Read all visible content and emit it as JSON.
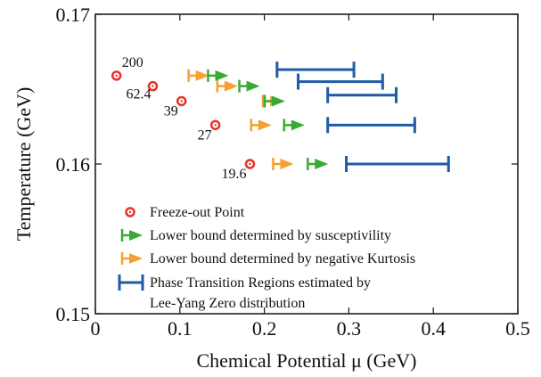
{
  "chart_data": {
    "type": "scatter",
    "xlabel": "Chemical Potential μ (GeV)",
    "ylabel": "Temperature (GeV)",
    "xlim": [
      0,
      0.5
    ],
    "ylim": [
      0.15,
      0.17
    ],
    "xticks": [
      "0",
      "0.1",
      "0.2",
      "0.3",
      "0.4",
      "0.5"
    ],
    "yticks": [
      "0.15",
      "0.16",
      "0.17"
    ],
    "legend_position": "bottom-left",
    "grid": false,
    "series": [
      {
        "name": "Freeze-out Point",
        "color": "#e8312a",
        "points": [
          {
            "label": "200",
            "x": 0.025,
            "y": 0.1659
          },
          {
            "label": "62.4",
            "x": 0.068,
            "y": 0.1652
          },
          {
            "label": "39",
            "x": 0.102,
            "y": 0.1642
          },
          {
            "label": "27",
            "x": 0.142,
            "y": 0.1626
          },
          {
            "label": "19.6",
            "x": 0.183,
            "y": 0.16
          }
        ]
      },
      {
        "name": "Lower bound determined by susceptivility",
        "color": "#3aaa35",
        "points": [
          {
            "x": 0.145,
            "y": 0.1659
          },
          {
            "x": 0.182,
            "y": 0.1652
          },
          {
            "x": 0.212,
            "y": 0.1642
          },
          {
            "x": 0.235,
            "y": 0.1626
          },
          {
            "x": 0.263,
            "y": 0.16
          }
        ]
      },
      {
        "name": "Lower bound determined by negative Kurtosis",
        "color": "#f5a030",
        "points": [
          {
            "x": 0.122,
            "y": 0.1659
          },
          {
            "x": 0.156,
            "y": 0.1652
          },
          {
            "x": 0.21,
            "y": 0.1642
          },
          {
            "x": 0.196,
            "y": 0.1626
          },
          {
            "x": 0.222,
            "y": 0.16
          }
        ]
      },
      {
        "name": "Phase Transition Regions estimated by Lee-Yang Zero distribution",
        "name_lines": [
          "Phase Transition Regions estimated by",
          "Lee-Yang Zero distribution"
        ],
        "color": "#1f5ba8",
        "ranges": [
          {
            "x_min": 0.215,
            "x_max": 0.306,
            "y": 0.1663
          },
          {
            "x_min": 0.24,
            "x_max": 0.34,
            "y": 0.1655
          },
          {
            "x_min": 0.275,
            "x_max": 0.356,
            "y": 0.1646
          },
          {
            "x_min": 0.275,
            "x_max": 0.378,
            "y": 0.1626
          },
          {
            "x_min": 0.297,
            "x_max": 0.418,
            "y": 0.16
          }
        ]
      }
    ]
  }
}
